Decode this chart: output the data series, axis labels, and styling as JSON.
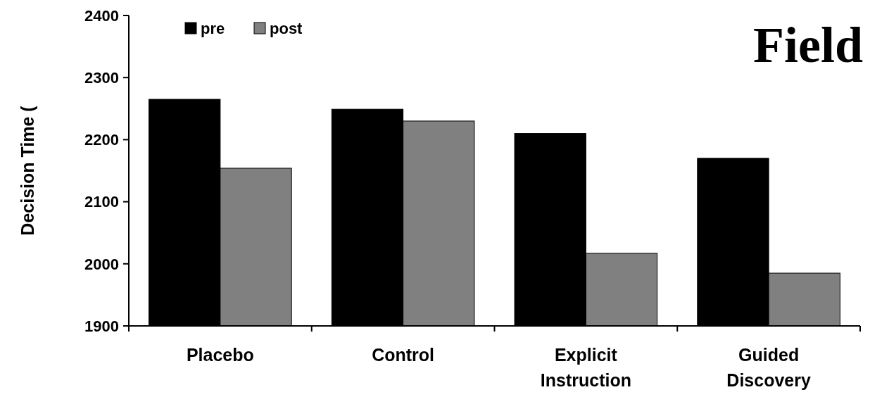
{
  "chart_data": {
    "type": "bar",
    "title": "Field",
    "ylabel": "Decision Time (",
    "categories": [
      "Placebo",
      "Control",
      "Explicit Instruction",
      "Guided Discovery"
    ],
    "series": [
      {
        "name": "pre",
        "color": "#000000",
        "values": [
          2265,
          2249,
          2210,
          2170
        ]
      },
      {
        "name": "post",
        "color": "#808080",
        "values": [
          2154,
          2230,
          2017,
          1985
        ]
      }
    ],
    "ylim": [
      1900,
      2400
    ],
    "yticks": [
      1900,
      2000,
      2100,
      2200,
      2300,
      2400
    ],
    "grid": false,
    "legend": "top left"
  }
}
